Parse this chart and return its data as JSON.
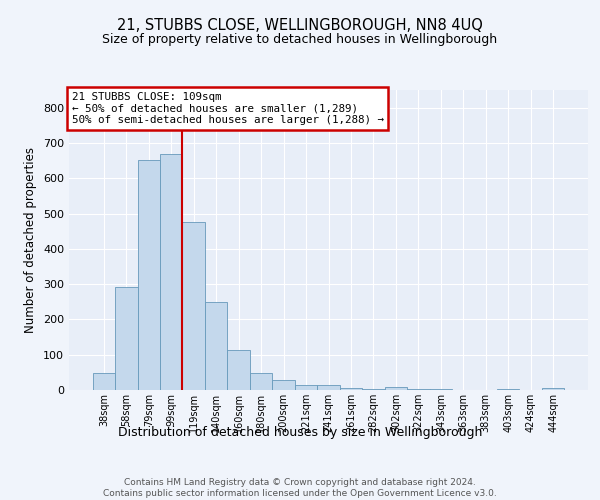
{
  "title": "21, STUBBS CLOSE, WELLINGBOROUGH, NN8 4UQ",
  "subtitle": "Size of property relative to detached houses in Wellingborough",
  "xlabel": "Distribution of detached houses by size in Wellingborough",
  "ylabel": "Number of detached properties",
  "bar_labels": [
    "38sqm",
    "58sqm",
    "79sqm",
    "99sqm",
    "119sqm",
    "140sqm",
    "160sqm",
    "180sqm",
    "200sqm",
    "221sqm",
    "241sqm",
    "261sqm",
    "282sqm",
    "302sqm",
    "322sqm",
    "343sqm",
    "363sqm",
    "383sqm",
    "403sqm",
    "424sqm",
    "444sqm"
  ],
  "bar_values": [
    47,
    293,
    651,
    668,
    475,
    248,
    114,
    49,
    27,
    15,
    14,
    6,
    4,
    8,
    2,
    4,
    1,
    1,
    2,
    1,
    7
  ],
  "bar_color": "#c4d8ec",
  "bar_edge_color": "#6699bb",
  "marker_line_color": "#cc0000",
  "annotation_text": "21 STUBBS CLOSE: 109sqm\n← 50% of detached houses are smaller (1,289)\n50% of semi-detached houses are larger (1,288) →",
  "annotation_box_color": "#ffffff",
  "annotation_box_edge_color": "#cc0000",
  "ylim": [
    0,
    850
  ],
  "yticks": [
    0,
    100,
    200,
    300,
    400,
    500,
    600,
    700,
    800
  ],
  "fig_background_color": "#f0f4fb",
  "plot_background_color": "#e8eef8",
  "footer_line1": "Contains HM Land Registry data © Crown copyright and database right 2024.",
  "footer_line2": "Contains public sector information licensed under the Open Government Licence v3.0."
}
